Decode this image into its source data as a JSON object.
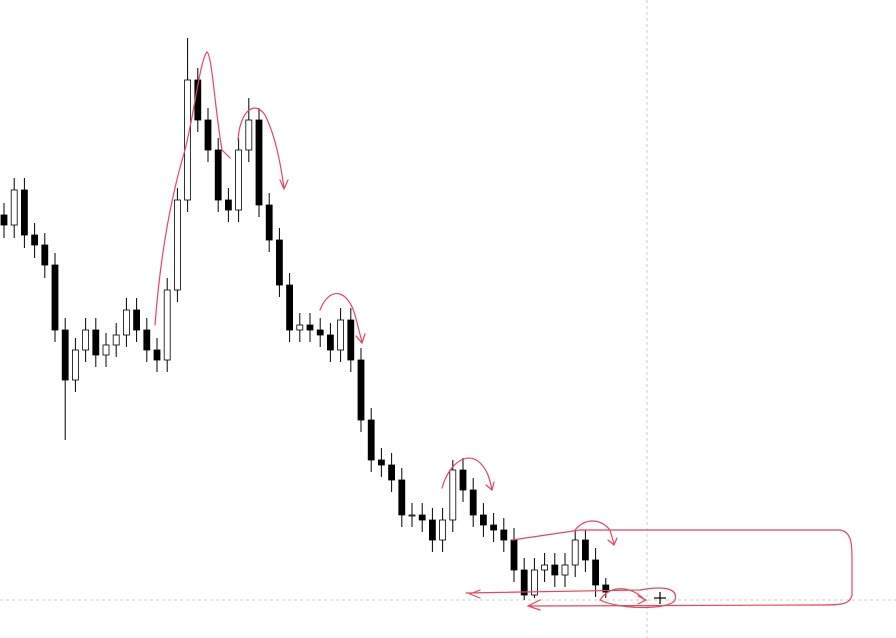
{
  "chart_data": {
    "type": "candlestick",
    "ylim": [
      0,
      638
    ],
    "up_color": "#ffffff",
    "down_color": "#000000",
    "wick_color": "#000000",
    "open": [
      423,
      413,
      448,
      403,
      393,
      373,
      308,
      258,
      288,
      308,
      283,
      293,
      303,
      328,
      308,
      288,
      278,
      348,
      438,
      558,
      518,
      488,
      438,
      428,
      488,
      518,
      433,
      398,
      353,
      308,
      313,
      308,
      303,
      288,
      318,
      278,
      218,
      178,
      173,
      158,
      123,
      123,
      118,
      98,
      118,
      168,
      148,
      123,
      113,
      108,
      98,
      68,
      43,
      68,
      73,
      63,
      73,
      98,
      78,
      53
    ],
    "high": [
      435,
      460,
      460,
      415,
      405,
      385,
      320,
      300,
      320,
      320,
      305,
      315,
      340,
      340,
      320,
      300,
      360,
      450,
      600,
      570,
      530,
      500,
      450,
      500,
      540,
      530,
      445,
      410,
      365,
      325,
      325,
      320,
      315,
      330,
      330,
      290,
      230,
      190,
      185,
      170,
      135,
      135,
      130,
      130,
      178,
      180,
      160,
      135,
      125,
      120,
      110,
      80,
      80,
      85,
      85,
      85,
      108,
      108,
      90,
      60
    ],
    "low": [
      400,
      400,
      390,
      380,
      360,
      296,
      198,
      246,
      276,
      271,
      271,
      281,
      291,
      296,
      276,
      266,
      266,
      336,
      426,
      506,
      476,
      426,
      416,
      416,
      476,
      421,
      386,
      341,
      296,
      296,
      296,
      291,
      276,
      276,
      266,
      206,
      166,
      161,
      146,
      111,
      111,
      106,
      86,
      86,
      106,
      136,
      111,
      101,
      96,
      86,
      56,
      38,
      40,
      56,
      51,
      51,
      61,
      66,
      41,
      40
    ],
    "close": [
      413,
      448,
      403,
      393,
      373,
      308,
      258,
      288,
      308,
      283,
      293,
      303,
      328,
      308,
      288,
      278,
      348,
      438,
      558,
      518,
      488,
      438,
      428,
      488,
      518,
      433,
      398,
      353,
      308,
      313,
      308,
      303,
      288,
      318,
      278,
      218,
      178,
      173,
      158,
      123,
      123,
      118,
      98,
      118,
      168,
      148,
      123,
      113,
      108,
      98,
      68,
      43,
      68,
      73,
      63,
      73,
      98,
      78,
      53,
      46
    ]
  }
}
